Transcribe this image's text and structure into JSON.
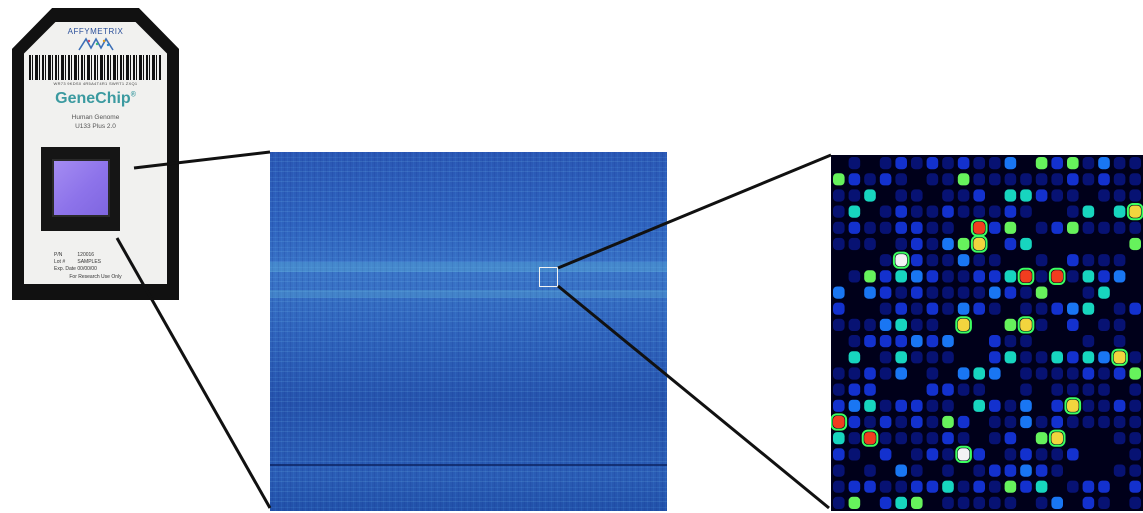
{
  "chip": {
    "brand": "AFFYMETRIX",
    "barcode_digits": "WR73 9KDS0 4R5A4T4R1 SWRT1 ZXQ1",
    "product_name": "GeneChip",
    "product_name_mark": "®",
    "product_line1": "Human Genome",
    "product_line2": "U133 Plus 2.0",
    "part_number_label": "P/N",
    "part_number": "120016",
    "lot_label": "Lot #",
    "lot": "SAMPLES",
    "expiry_label": "Exp. Date",
    "expiry": "00/00/00",
    "research_note": "For Research Use Only"
  },
  "colors": {
    "chip_body": "#111111",
    "chip_label": "#f1f1ef",
    "array_window": "#8d73ea",
    "scan_blue": "#2e62bd",
    "zoom_background": "#00001a",
    "connector": "#111111"
  },
  "icons": {
    "brand_logo": "affymetrix-logo-icon"
  }
}
